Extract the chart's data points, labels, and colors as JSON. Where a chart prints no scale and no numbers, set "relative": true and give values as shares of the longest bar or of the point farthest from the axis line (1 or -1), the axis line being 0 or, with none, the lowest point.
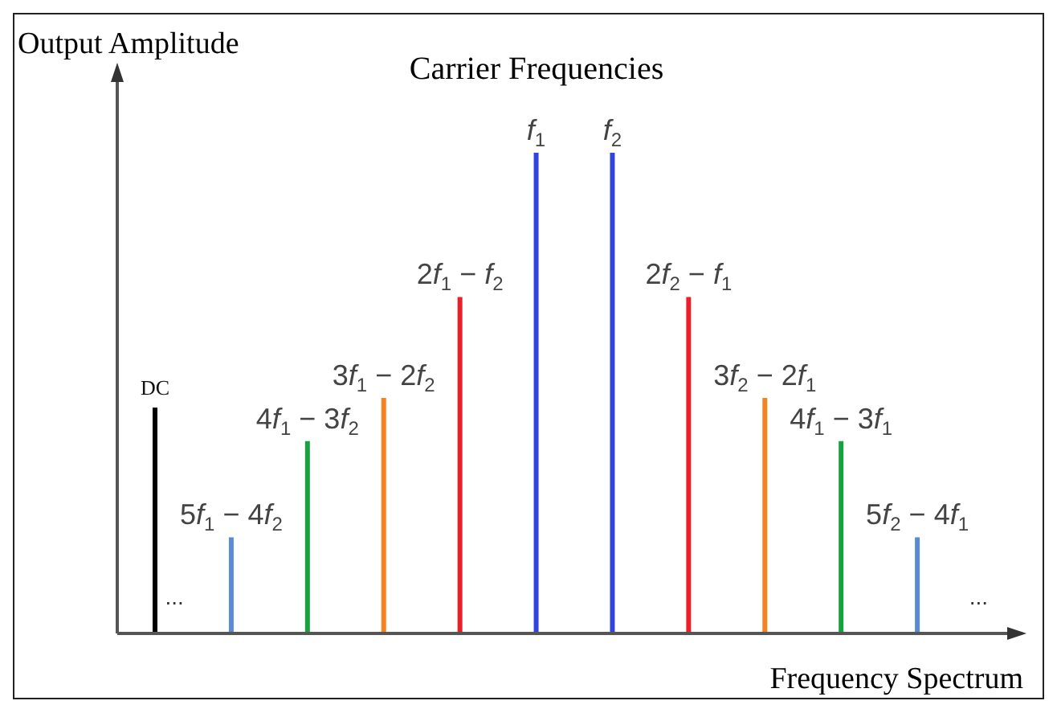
{
  "chart_data": {
    "type": "bar",
    "title": "Carrier Frequencies",
    "xlabel": "Frequency Spectrum",
    "ylabel": "Output Amplitude",
    "relative": true,
    "categories": [
      "DC",
      "5f$_{1}$ − 4f$_{2}$",
      "4f$_{1}$ − 3f$_{2}$",
      "3f$_{1}$ − 2f$_{2}$",
      "2f$_{1}$ − f$_{2}$",
      "f$_{1}$",
      "f$_{2}$",
      "2f$_{2}$ − f$_{1}$",
      "3f$_{2}$ − 2f$_{1}$",
      "4f$_{1}$ − 3f$_{1}$",
      "5f$_{2}$ − 4f$_{1}$"
    ],
    "values": [
      0.47,
      0.2,
      0.4,
      0.49,
      0.7,
      1,
      1,
      0.7,
      0.49,
      0.4,
      0.2
    ],
    "colors": [
      "#000000",
      "#5b8bd0",
      "#1aa040",
      "#f5821f",
      "#e8202a",
      "#3344dd",
      "#3344dd",
      "#e8202a",
      "#f5821f",
      "#1aa040",
      "#5b8bd0"
    ],
    "annotations": [
      "...",
      "..."
    ],
    "grid": false,
    "legend": false
  }
}
